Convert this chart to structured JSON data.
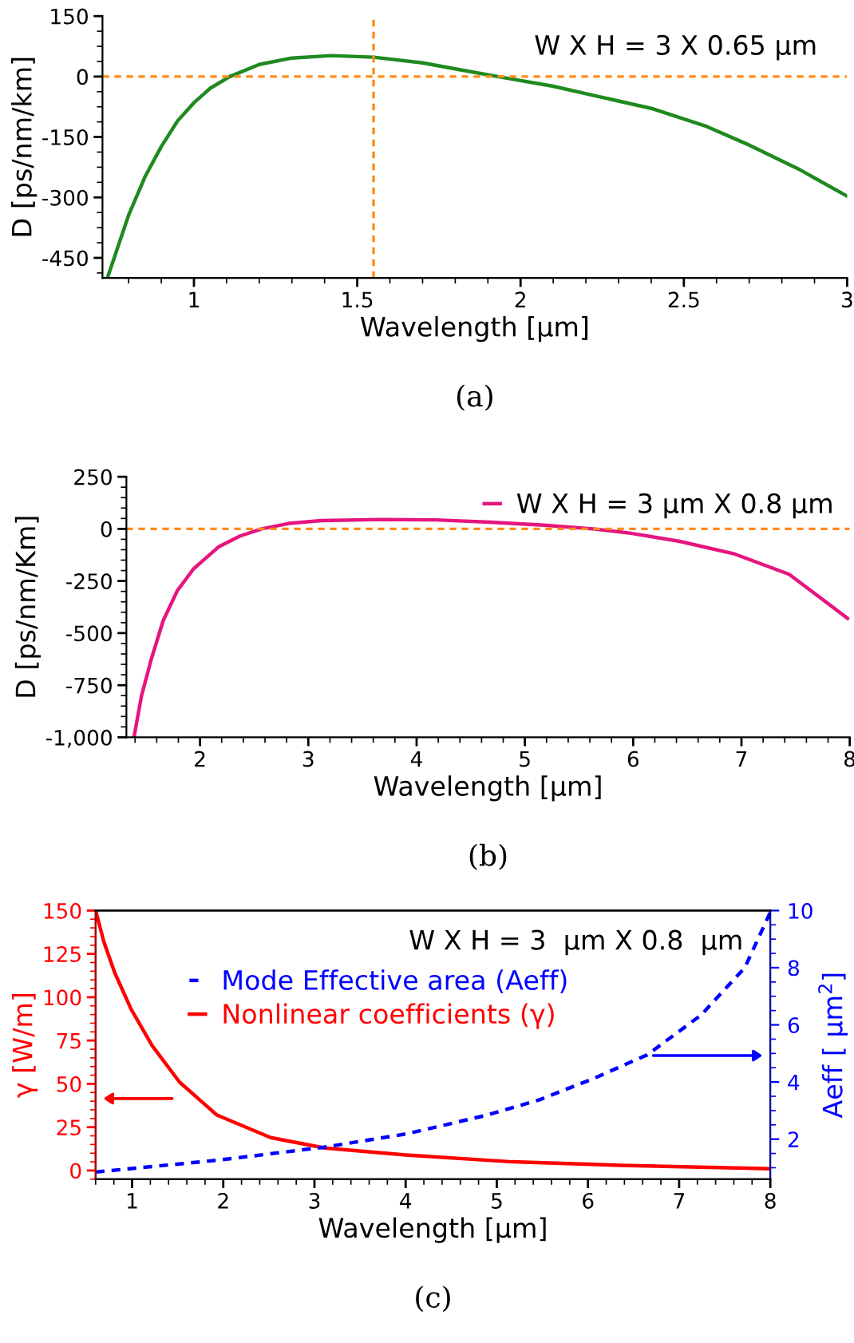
{
  "chart_data": [
    {
      "type": "line",
      "xlabel": "Wavelength [µm]",
      "ylabel": "D [ps/nm/km]",
      "annotations": [
        "W X H = 3 X 0.65 µm",
        "(a)"
      ],
      "xlim": [
        0.72,
        3
      ],
      "ylim": [
        -500,
        150
      ],
      "xticks": [
        1,
        1.5,
        2,
        2.5,
        3
      ],
      "yticks": [
        -450,
        -300,
        -150,
        0,
        150
      ],
      "ref_lines": [
        {
          "axis": "y",
          "value": 0,
          "color": "#ff8c1a",
          "line_style": "dashed"
        },
        {
          "axis": "x",
          "value": 1.55,
          "color": "#ff8c1a",
          "line_style": "dashed"
        }
      ],
      "grid": false,
      "legend": false,
      "series": [
        {
          "color": "#1f8a1f",
          "x": [
            0.735,
            0.8,
            0.85,
            0.9,
            0.95,
            1.0,
            1.05,
            1.11,
            1.2,
            1.3,
            1.42,
            1.55,
            1.7,
            1.82,
            1.93,
            2.1,
            2.23,
            2.4,
            2.57,
            2.7,
            2.85,
            3.0
          ],
          "values": [
            -500,
            -344,
            -249,
            -174,
            -110,
            -65,
            -29,
            0,
            30,
            46,
            52,
            48,
            34,
            16,
            0,
            -24,
            -48,
            -79,
            -124,
            -170,
            -229,
            -297
          ]
        }
      ]
    },
    {
      "type": "line",
      "xlabel": "Wavelength [µm]",
      "ylabel": "D [ps/nm/Km]",
      "annotations": [
        "(b)"
      ],
      "xlim": [
        1.32,
        8
      ],
      "ylim": [
        -1000,
        250
      ],
      "xticks": [
        2,
        3,
        4,
        5,
        6,
        7,
        8
      ],
      "yticks": [
        {
          "value": -1000,
          "label": "-1,000"
        },
        -750,
        -500,
        -250,
        0,
        250
      ],
      "ref_lines": [
        {
          "axis": "y",
          "value": 0,
          "color": "#ff8c1a",
          "line_style": "dashed"
        }
      ],
      "grid": false,
      "legend": "top right",
      "series": [
        {
          "name": "W X H = 3 µm X 0.8 µm",
          "color": "#e6157f",
          "x": [
            1.39,
            1.46,
            1.55,
            1.66,
            1.79,
            1.94,
            2.17,
            2.37,
            2.57,
            2.82,
            3.12,
            3.67,
            4.18,
            4.68,
            5.18,
            5.63,
            5.98,
            6.43,
            6.94,
            7.44,
            7.98
          ],
          "values": [
            -1000,
            -800,
            -625,
            -440,
            -297,
            -192,
            -87,
            -34,
            0,
            26,
            40,
            45,
            43,
            32,
            18,
            0,
            -21,
            -60,
            -121,
            -218,
            -429
          ]
        }
      ]
    },
    {
      "type": "line",
      "xlabel": "Wavelength [µm]",
      "ylabel": "γ [W/m]",
      "y2label": "Aeff [ µm$^{2}$]",
      "annotations": [
        "W X H = 3  µm X 0.8  µm",
        "(c)"
      ],
      "xlim": [
        0.6,
        8
      ],
      "ylim": [
        -5,
        150
      ],
      "y2lim": [
        0.6,
        10
      ],
      "xticks": [
        1,
        2,
        3,
        4,
        5,
        6,
        7,
        8
      ],
      "yticks": [
        0,
        25,
        50,
        75,
        100,
        125,
        150
      ],
      "y2ticks": [
        2,
        4,
        6,
        8,
        10
      ],
      "grid": false,
      "legend": "top",
      "series": [
        {
          "name": "Mode Effective area (Aeff)",
          "color": "#0000ff",
          "axis": "y2",
          "line_style": "dashed",
          "x": [
            0.6,
            1.93,
            3.11,
            4.0,
            4.88,
            5.47,
            6.06,
            6.65,
            7.24,
            7.72,
            8.0
          ],
          "values": [
            0.85,
            1.26,
            1.72,
            2.18,
            2.83,
            3.38,
            4.12,
            4.95,
            6.34,
            8.0,
            9.94
          ]
        },
        {
          "name": "Nonlinear coefficients (γ)",
          "color": "#ff0000",
          "line_style": "solid",
          "x": [
            0.6,
            0.69,
            0.81,
            0.99,
            1.22,
            1.52,
            1.93,
            2.52,
            3.11,
            4.0,
            5.17,
            6.36,
            8.0
          ],
          "values": [
            150,
            132,
            114,
            93,
            72,
            51,
            32,
            19,
            13,
            9,
            5,
            3,
            1
          ]
        }
      ]
    }
  ]
}
